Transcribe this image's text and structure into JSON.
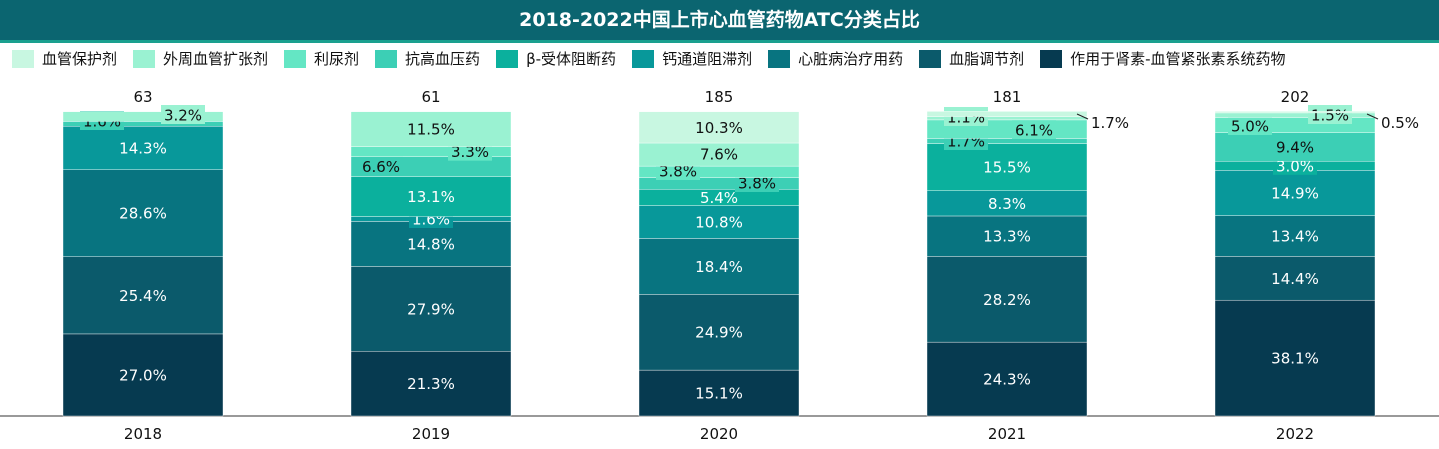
{
  "chart_data": {
    "type": "bar",
    "stacked": "percent",
    "title": "2018-2022中国上市心血管药物ATC分类占比",
    "categories": [
      "2018",
      "2019",
      "2020",
      "2021",
      "2022"
    ],
    "totals": [
      "63",
      "61",
      "185",
      "181",
      "202"
    ],
    "legend_position": "top",
    "grid": false,
    "series": [
      {
        "name": "作用于肾素-血管紧张素系统药物",
        "color": "#063a50",
        "values": [
          27.0,
          21.3,
          15.1,
          24.3,
          38.1
        ]
      },
      {
        "name": "血脂调节剂",
        "color": "#0b5a6b",
        "values": [
          25.4,
          27.9,
          24.9,
          28.2,
          14.4
        ]
      },
      {
        "name": "心脏病治疗用药",
        "color": "#087480",
        "values": [
          28.6,
          14.8,
          18.4,
          13.3,
          13.4
        ]
      },
      {
        "name": "钙通道阻滞剂",
        "color": "#08989a",
        "values": [
          14.3,
          1.6,
          10.8,
          8.3,
          14.9
        ]
      },
      {
        "name": "β-受体阻断药",
        "color": "#0bb09d",
        "values": [
          0,
          13.1,
          5.4,
          15.5,
          3.0
        ]
      },
      {
        "name": "抗高血压药",
        "color": "#3ccfb5",
        "values": [
          1.6,
          6.6,
          3.8,
          1.7,
          9.4
        ]
      },
      {
        "name": "利尿剂",
        "color": "#64e6c4",
        "values": [
          0,
          3.3,
          3.8,
          6.1,
          5.0
        ]
      },
      {
        "name": "外周血管扩张剂",
        "color": "#9af2d2",
        "values": [
          3.2,
          11.5,
          7.6,
          1.1,
          1.5
        ]
      },
      {
        "name": "血管保护剂",
        "color": "#c8f7e1",
        "values": [
          0,
          0,
          10.3,
          1.7,
          0.5
        ]
      }
    ],
    "ylim": [
      0,
      100
    ]
  }
}
